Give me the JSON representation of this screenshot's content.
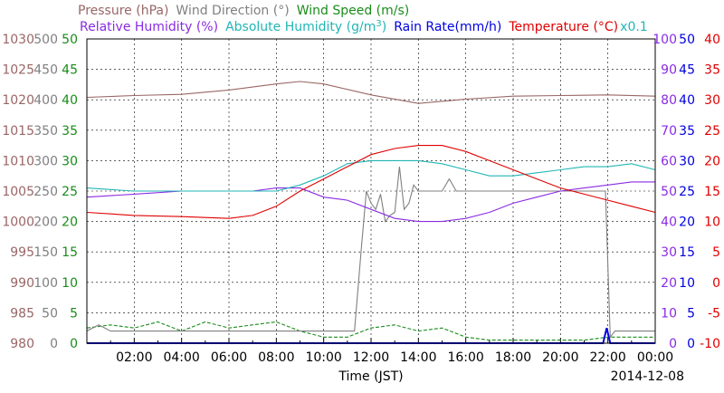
{
  "chart_data": {
    "type": "line",
    "title": "",
    "xlabel": "Time (JST)",
    "date": "2014-12-08",
    "x_range": [
      "00:00",
      "24:00"
    ],
    "x_ticks": [
      "02:00",
      "04:00",
      "06:00",
      "08:00",
      "10:00",
      "12:00",
      "14:00",
      "16:00",
      "18:00",
      "20:00",
      "22:00",
      "00:00"
    ],
    "grid": true,
    "legend_row1": [
      {
        "key": "pressure",
        "label": "Pressure (hPa)"
      },
      {
        "key": "wind_dir",
        "label": "Wind Direction (°)"
      },
      {
        "key": "wind_speed",
        "label": "Wind Speed (m/s)"
      }
    ],
    "legend_row2": [
      {
        "key": "humidity",
        "label": "Relative Humidity (%)"
      },
      {
        "key": "abs_humidity",
        "label": "Absolute Humidity (g/m",
        "sup": "3",
        "tail": ")"
      },
      {
        "key": "rain",
        "label": "Rain Rate(mm/h)"
      },
      {
        "key": "temperature",
        "label": "Temperature (°C)"
      },
      {
        "key": "scale_note",
        "label": "x0.1"
      }
    ],
    "colors": {
      "pressure": "#9a6666",
      "wind_dir": "#808080",
      "wind_speed": "#1a8c1a",
      "humidity": "#8a2be2",
      "abs_humidity": "#22b5b5",
      "rain": "#0000e0",
      "temperature": "#e00000",
      "scale_note": "#22b5b5"
    },
    "axes": {
      "pressure": {
        "range": [
          980,
          1030
        ],
        "ticks": [
          "1030",
          "1025",
          "1020",
          "1015",
          "1010",
          "1005",
          "1000",
          "995",
          "990",
          "985",
          "980"
        ]
      },
      "wind_dir": {
        "range": [
          0,
          500
        ],
        "ticks": [
          "500",
          "450",
          "400",
          "350",
          "300",
          "250",
          "200",
          "150",
          "100",
          "50",
          "0"
        ]
      },
      "wind_speed": {
        "range": [
          0,
          50
        ],
        "ticks": [
          "50",
          "45",
          "40",
          "35",
          "30",
          "25",
          "20",
          "15",
          "10",
          "5",
          "0"
        ]
      },
      "humidity": {
        "range": [
          0,
          100
        ],
        "ticks": [
          "100",
          "90",
          "80",
          "70",
          "60",
          "50",
          "40",
          "30",
          "20",
          "10",
          "0"
        ]
      },
      "rain": {
        "range": [
          0,
          50
        ],
        "ticks": [
          "50",
          "45",
          "40",
          "35",
          "30",
          "25",
          "20",
          "15",
          "10",
          "5",
          "0"
        ]
      },
      "temperature": {
        "range": [
          -10,
          40
        ],
        "ticks": [
          "40",
          "35",
          "30",
          "25",
          "20",
          "15",
          "10",
          "5",
          "0",
          "-5",
          "-10"
        ]
      }
    },
    "series": [
      {
        "key": "pressure",
        "name": "Pressure (hPa)",
        "x": [
          0,
          2,
          4,
          6,
          8,
          9,
          10,
          12,
          14,
          16,
          18,
          20,
          22,
          24
        ],
        "y": [
          1020.4,
          1020.7,
          1020.9,
          1021.6,
          1022.6,
          1023.0,
          1022.6,
          1020.8,
          1019.4,
          1020.1,
          1020.6,
          1020.7,
          1020.8,
          1020.6
        ]
      },
      {
        "key": "wind_dir",
        "name": "Wind Direction (°)",
        "x": [
          0,
          0.5,
          1,
          3,
          5,
          8,
          10,
          11.3,
          11.6,
          11.8,
          12.0,
          12.2,
          12.4,
          12.6,
          12.8,
          13.0,
          13.2,
          13.4,
          13.6,
          13.8,
          14.0,
          14.5,
          15.0,
          15.3,
          15.6,
          16,
          18,
          20,
          21.5,
          21.9,
          22.1,
          22.3,
          24
        ],
        "y": [
          20,
          30,
          20,
          20,
          20,
          20,
          20,
          20,
          160,
          250,
          230,
          220,
          245,
          200,
          210,
          215,
          290,
          220,
          230,
          260,
          250,
          250,
          250,
          270,
          250,
          250,
          250,
          250,
          250,
          250,
          10,
          20,
          20
        ]
      },
      {
        "key": "wind_speed",
        "name": "Wind Speed (m/s)",
        "x": [
          0,
          1,
          2,
          3,
          4,
          5,
          6,
          7,
          8,
          9,
          10,
          11,
          12,
          13,
          14,
          15,
          16,
          17,
          18,
          19,
          20,
          21,
          22,
          23,
          24
        ],
        "y": [
          2.5,
          3.0,
          2.5,
          3.5,
          2.0,
          3.5,
          2.5,
          3.0,
          3.5,
          2.0,
          1.0,
          1.0,
          2.5,
          3.0,
          2.0,
          2.5,
          1.0,
          0.5,
          0.5,
          0.5,
          0.5,
          0.5,
          1.0,
          1.0,
          1.0
        ]
      },
      {
        "key": "humidity",
        "name": "Relative Humidity (%)",
        "x": [
          0,
          2,
          4,
          6,
          7,
          8,
          9,
          10,
          11,
          12,
          13,
          14,
          15,
          16,
          17,
          18,
          19,
          20,
          21,
          22,
          23,
          24
        ],
        "y": [
          48,
          49,
          50,
          50,
          50,
          51,
          51,
          48,
          47,
          44,
          41,
          40,
          40,
          41,
          43,
          46,
          48,
          50,
          51,
          52,
          53,
          53
        ]
      },
      {
        "key": "abs_humidity",
        "name": "Absolute Humidity (g/m3) x0.1",
        "x": [
          0,
          2,
          4,
          6,
          7,
          8,
          9,
          10,
          11,
          12,
          13,
          14,
          15,
          16,
          17,
          18,
          19,
          20,
          21,
          22,
          23,
          24
        ],
        "y": [
          51,
          50,
          50,
          50,
          50,
          50,
          52,
          55,
          59,
          60,
          60,
          60,
          59,
          57,
          55,
          55,
          56,
          57,
          58,
          58,
          59,
          57
        ]
      },
      {
        "key": "rain",
        "name": "Rain Rate(mm/h)",
        "x": [
          0,
          21.8,
          21.95,
          22.1,
          22.3,
          24
        ],
        "y": [
          0,
          0,
          2.5,
          0,
          0,
          0
        ]
      },
      {
        "key": "temperature",
        "name": "Temperature (°C)",
        "x": [
          0,
          2,
          4,
          6,
          7,
          8,
          9,
          10,
          11,
          12,
          13,
          14,
          15,
          16,
          17,
          18,
          19,
          20,
          21,
          22,
          23,
          24
        ],
        "y": [
          11.5,
          11.0,
          10.8,
          10.5,
          11.0,
          12.5,
          15.0,
          17.0,
          19.0,
          21.0,
          22.0,
          22.5,
          22.5,
          21.5,
          20.0,
          18.5,
          17.0,
          15.5,
          14.5,
          13.5,
          12.5,
          11.5
        ]
      }
    ]
  }
}
